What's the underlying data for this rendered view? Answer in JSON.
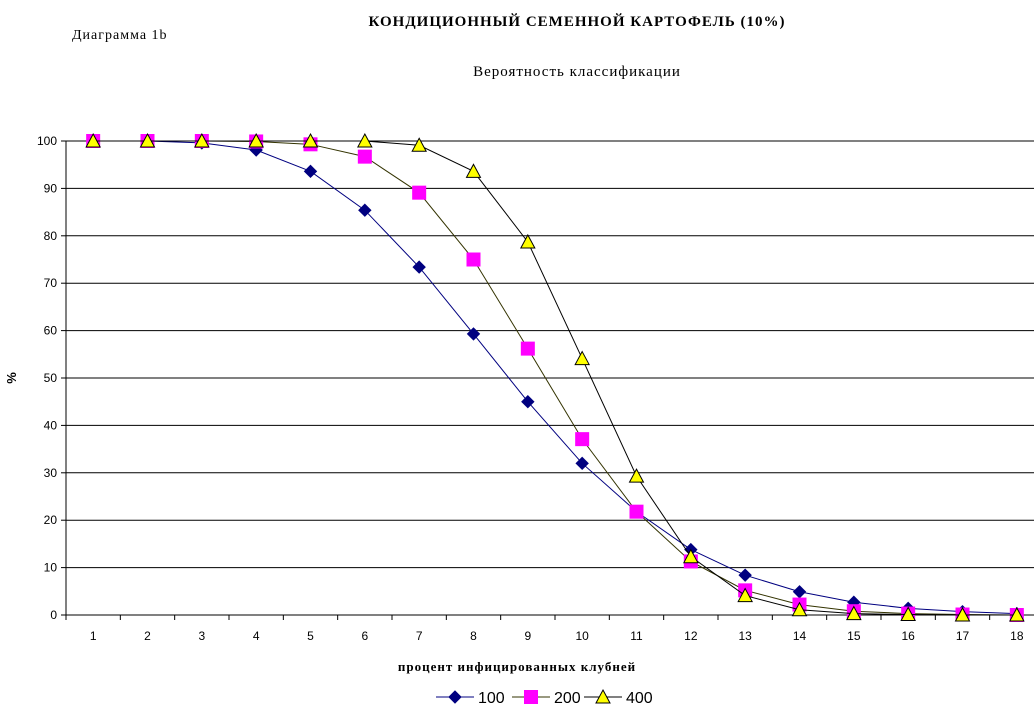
{
  "diagram_label": "Диаграмма 1b",
  "chart_data": {
    "type": "line",
    "title": "КОНДИЦИОННЫЙ СЕМЕННОЙ КАРТОФЕЛЬ (10%)",
    "subtitle": "Вероятность классификации",
    "xlabel": "процент инфицированных клубней",
    "ylabel": "%",
    "x": [
      1,
      2,
      3,
      4,
      5,
      6,
      7,
      8,
      9,
      10,
      11,
      12,
      13,
      14,
      15,
      16,
      17,
      18
    ],
    "ylim": [
      0,
      100
    ],
    "yticks": [
      0,
      10,
      20,
      30,
      40,
      50,
      60,
      70,
      80,
      90,
      100
    ],
    "grid": "horizontal",
    "legend_position": "bottom",
    "series": [
      {
        "name": "100",
        "marker": "diamond",
        "color": "#000080",
        "fill": "#000080",
        "values": [
          100,
          100,
          99.6,
          98.1,
          93.6,
          85.4,
          73.4,
          59.3,
          45,
          32,
          21.8,
          13.8,
          8.4,
          4.9,
          2.7,
          1.4,
          0.7,
          0.3
        ]
      },
      {
        "name": "200",
        "marker": "square",
        "color": "#333300",
        "fill": "#ff00ff",
        "values": [
          100,
          100,
          100,
          99.9,
          99.3,
          96.7,
          89.1,
          75,
          56.2,
          37.1,
          21.8,
          11.3,
          5.2,
          2.2,
          0.8,
          0.3,
          0.1,
          0
        ]
      },
      {
        "name": "400",
        "marker": "triangle",
        "color": "#000000",
        "fill": "#ffff00",
        "values": [
          100,
          100,
          100,
          100,
          100,
          100,
          99.1,
          93.6,
          78.7,
          54.1,
          29.3,
          12.3,
          4.1,
          1.1,
          0.3,
          0.1,
          0,
          0
        ]
      }
    ]
  }
}
